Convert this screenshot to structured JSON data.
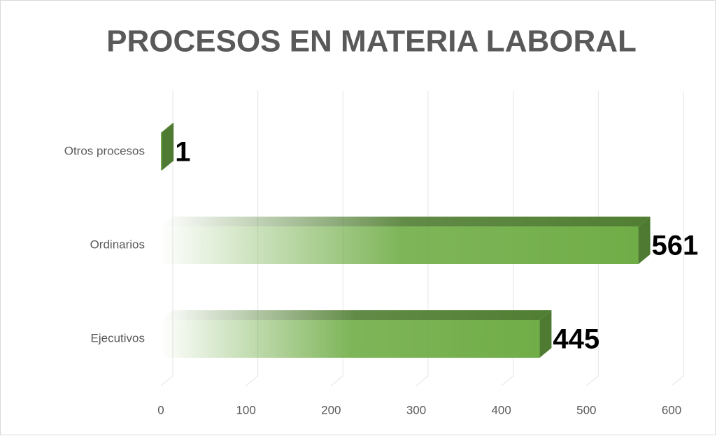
{
  "chart_data": {
    "type": "bar3d_horizontal",
    "title": "PROCESOS EN MATERIA LABORAL",
    "categories": [
      "Otros procesos",
      "Ordinarios",
      "Ejecutivos"
    ],
    "values": [
      1,
      561,
      445
    ],
    "color": "#70ad47",
    "xlim": [
      0,
      600
    ],
    "xticks": [
      0,
      100,
      200,
      300,
      400,
      500,
      600
    ],
    "grid": true
  }
}
